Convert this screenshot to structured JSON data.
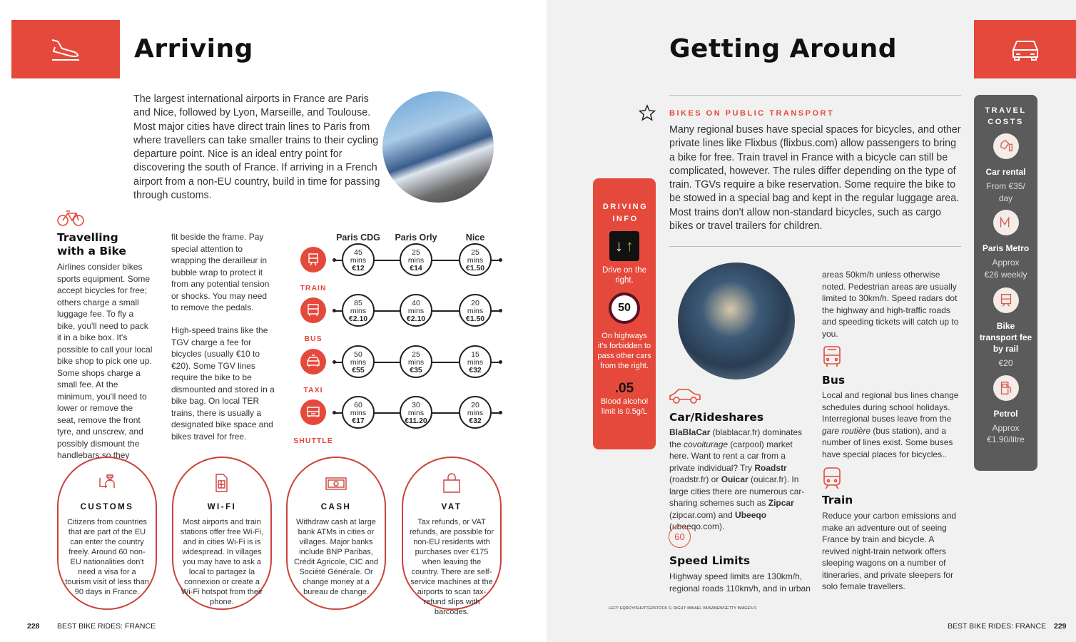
{
  "left": {
    "title": "Arriving",
    "intro": "The largest international airports in France are Paris and Nice, followed by Lyon, Marseille, and Toulouse. Most major cities have direct train lines to Paris from where travellers can take smaller trains to their cycling departure point. Nice is an ideal entry point for discovering the south of France. If arriving in a French airport from a non-EU country, build in time for passing through customs.",
    "bike": {
      "heading": "Travelling with a Bike",
      "col1": "Airlines consider bikes sports equipment. Some accept bicycles for free; others charge a small luggage fee. To fly a bike, you'll need to pack it in a bike box. It's possible to call your local bike shop to pick one up. Some shops charge a small fee. At the minimum, you'll need to lower or remove the seat, remove the front tyre, and unscrew, and possibly dismount the handlebars so they",
      "col2a": "fit beside the frame. Pay special attention to wrapping the derailleur in bubble wrap to protect it from any potential tension or shocks. You may need to remove the pedals.",
      "col2b": "High-speed trains like the TGV charge a fee for bicycles (usually €10 to €20). Some TGV lines require the bike to be dismounted and stored in a bike bag. On local TER trains, there is usually a designated bike space and bikes travel for free."
    },
    "transport": {
      "columns": [
        "Paris CDG",
        "Paris Orly",
        "Nice"
      ],
      "unit": "mins",
      "rows": [
        {
          "mode": "TRAIN",
          "icon": "train-icon",
          "cells": [
            {
              "time": "45",
              "price": "€12"
            },
            {
              "time": "25",
              "price": "€14"
            },
            {
              "time": "25",
              "price": "€1.50"
            }
          ]
        },
        {
          "mode": "BUS",
          "icon": "bus-icon",
          "cells": [
            {
              "time": "85",
              "price": "€2.10"
            },
            {
              "time": "40",
              "price": "€2.10"
            },
            {
              "time": "20",
              "price": "€1.50"
            }
          ]
        },
        {
          "mode": "TAXI",
          "icon": "taxi-icon",
          "cells": [
            {
              "time": "50",
              "price": "€55"
            },
            {
              "time": "25",
              "price": "€35"
            },
            {
              "time": "15",
              "price": "€32"
            }
          ]
        },
        {
          "mode": "SHUTTLE",
          "icon": "shuttle-icon",
          "cells": [
            {
              "time": "60",
              "price": "€17"
            },
            {
              "time": "30",
              "price": "€11.20"
            },
            {
              "time": "20",
              "price": "€32"
            }
          ]
        }
      ]
    },
    "ovals": [
      {
        "title": "CUSTOMS",
        "icon": "customs-officer-icon",
        "text": "Citizens from countries that are part of the EU can enter the country freely. Around 60 non-EU nationalities don't need a visa for a tourism visit of less than 90 days in France."
      },
      {
        "title": "WI-FI",
        "icon": "sim-card-icon",
        "text": "Most airports and train stations offer free Wi-Fi, and in cities Wi-Fi is is widespread. In villages you may have to ask a local to partagez la connexion or create a Wi-Fi hotspot from their phone."
      },
      {
        "title": "CASH",
        "icon": "banknote-icon",
        "text": "Withdraw cash at large bank ATMs in cities or villages. Major banks include BNP Paribas, Crédit Agricole, CIC and Société Générale. Or change money at a bureau de change."
      },
      {
        "title": "VAT",
        "icon": "shopping-bag-icon",
        "text": "Tax refunds, or VAT refunds, are possible for non-EU residents with purchases over €175 when leaving the country. There are self-service machines at the airports to scan tax-refund slips with barcodes."
      }
    ],
    "footer": {
      "page": "228",
      "book": "BEST BIKE RIDES: FRANCE"
    }
  },
  "right": {
    "title": "Getting Around",
    "bikes_heading": "BIKES ON PUBLIC TRANSPORT",
    "bikes_text": "Many regional buses have special spaces for bicycles, and other private lines like Flixbus (flixbus.com) allow passengers to bring a bike for free. Train travel in France with a bicycle can still be complicated, however. The rules differ depending on the type of train. TGVs require a bike reservation. Some require the bike to be stowed in a special bag and kept in the regular luggage area. Most trains don't allow non-standard bicycles, such as cargo bikes or travel trailers for children.",
    "driving": {
      "title": "DRIVING INFO",
      "drive_side": "Drive on the right.",
      "speed_sign": "50",
      "passing": "On highways it's forbidden to pass other cars from the right.",
      "alcohol_value": ".05",
      "alcohol": "Blood alcohol limit is 0.5g/L"
    },
    "car": {
      "heading": "Car/Rideshares"
    },
    "speed": {
      "badge": "60",
      "heading": "Speed Limits",
      "text": "Highway speed limits are 130km/h, regional roads 110km/h, and in urban"
    },
    "speed_cont": "areas 50km/h unless otherwise noted. Pedestrian areas are usually limited to 30km/h. Speed radars dot the highway and high-traffic roads and speeding tickets will catch up to you.",
    "bus": {
      "heading": "Bus",
      "text": "Local and regional bus lines change schedules during school holidays. Interregional buses leave from the ",
      "italic": "gare routière",
      "text2": " (bus station), and a number of lines exist. Some buses have special places for bicycles.."
    },
    "train": {
      "heading": "Train",
      "text": "Reduce your carbon emissions and make an adventure out of seeing France by train and bicycle. A revived night-train network offers sleeping wagons on a number of itineraries, and private sleepers for solo female travellers."
    },
    "costs": {
      "title": "TRAVEL COSTS",
      "items": [
        {
          "label": "Car rental",
          "value": "From €35/ day",
          "icon": "car-key-icon"
        },
        {
          "label": "Paris Metro",
          "value": "Approx €26 weekly",
          "icon": "metro-icon"
        },
        {
          "label": "Bike transport fee by rail",
          "value": "€20",
          "icon": "train-icon"
        },
        {
          "label": "Petrol",
          "value": "Approx €1.90/litre",
          "icon": "fuel-pump-icon"
        }
      ]
    },
    "credits": "LEFT: EQROY/SHUTTERSTOCK ©, RIGHT: MIKAEL VAISANEN/GETTY IMAGES ©",
    "footer": {
      "page": "229",
      "book": "BEST BIKE RIDES: FRANCE"
    }
  },
  "colors": {
    "accent": "#e5493b",
    "grey_panel": "#5b5b5b",
    "right_page_bg": "#f1f1f1"
  }
}
